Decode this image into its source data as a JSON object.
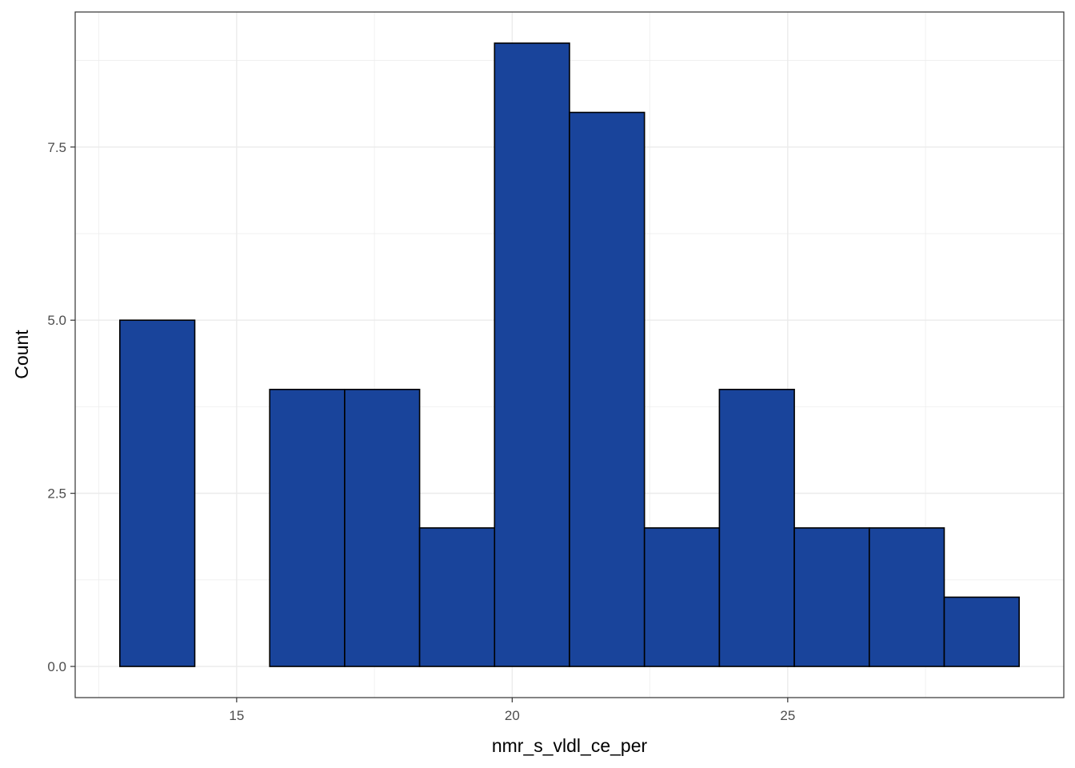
{
  "chart_data": {
    "type": "bar",
    "subtype": "histogram",
    "xlabel": "nmr_s_vldl_ce_per",
    "ylabel": "Count",
    "bins": [
      {
        "x0": 12.88,
        "x1": 14.24,
        "count": 5
      },
      {
        "x0": 14.24,
        "x1": 15.6,
        "count": 0
      },
      {
        "x0": 15.6,
        "x1": 16.96,
        "count": 4
      },
      {
        "x0": 16.96,
        "x1": 18.32,
        "count": 4
      },
      {
        "x0": 18.32,
        "x1": 19.68,
        "count": 2
      },
      {
        "x0": 19.68,
        "x1": 21.04,
        "count": 9
      },
      {
        "x0": 21.04,
        "x1": 22.4,
        "count": 8
      },
      {
        "x0": 22.4,
        "x1": 23.76,
        "count": 2
      },
      {
        "x0": 23.76,
        "x1": 25.12,
        "count": 4
      },
      {
        "x0": 25.12,
        "x1": 26.48,
        "count": 2
      },
      {
        "x0": 26.48,
        "x1": 27.84,
        "count": 2
      },
      {
        "x0": 27.84,
        "x1": 29.2,
        "count": 1
      }
    ],
    "xlim": [
      12.07,
      30.01
    ],
    "ylim": [
      -0.45,
      9.45
    ],
    "x_ticks": [
      15,
      20,
      25
    ],
    "x_tick_labels": [
      "15",
      "20",
      "25"
    ],
    "y_ticks": [
      0,
      2.5,
      5,
      7.5
    ],
    "y_tick_labels": [
      "0.0",
      "2.5",
      "5.0",
      "7.5"
    ],
    "grid": true,
    "fill_color": "#19449b",
    "edge_color": "#000000",
    "grid_color": "#ebebeb"
  }
}
